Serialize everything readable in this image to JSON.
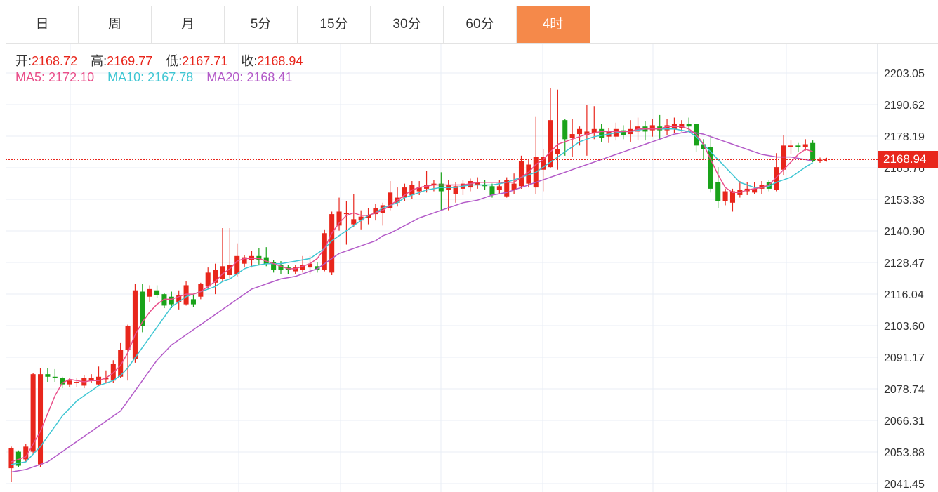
{
  "tabs": [
    {
      "label": "日"
    },
    {
      "label": "周"
    },
    {
      "label": "月"
    },
    {
      "label": "5分"
    },
    {
      "label": "15分"
    },
    {
      "label": "30分"
    },
    {
      "label": "60分"
    },
    {
      "label": "4时",
      "active": true
    }
  ],
  "ohlc": {
    "open_label": "开:",
    "open": "2168.72",
    "high_label": "高:",
    "high": "2169.77",
    "low_label": "低:",
    "low": "2167.71",
    "close_label": "收:",
    "close": "2168.94"
  },
  "ma": {
    "ma5_label": "MA5:",
    "ma5": "2172.10",
    "ma10_label": "MA10:",
    "ma10": "2167.78",
    "ma20_label": "MA20:",
    "ma20": "2168.41"
  },
  "last_price": "2168.94",
  "colors": {
    "up": "#e8261c",
    "down": "#1aa31a",
    "ma5": "#e94f8a",
    "ma10": "#3fc6d3",
    "ma20": "#b35ac8",
    "grid": "#e8eef5",
    "active_tab": "#f5894a"
  },
  "chart_data": {
    "type": "candlestick",
    "y_ticks": [
      "2203.05",
      "2190.62",
      "2178.19",
      "2165.76",
      "2153.33",
      "2140.90",
      "2128.47",
      "2116.04",
      "2103.60",
      "2091.17",
      "2078.74",
      "2066.31",
      "2053.88",
      "2041.45"
    ],
    "ylim": [
      2041.45,
      2203.05
    ],
    "last_close": 2168.94,
    "candles": [
      [
        2047.5,
        2055.5,
        2056.0,
        2042.0
      ],
      [
        2054.0,
        2048.5,
        2054.5,
        2048.0
      ],
      [
        2051.0,
        2056.0,
        2057.0,
        2050.0
      ],
      [
        2054.0,
        2084.5,
        2085.0,
        2053.0
      ],
      [
        2049.0,
        2084.5,
        2087.0,
        2048.0
      ],
      [
        2084.5,
        2083.5,
        2087.0,
        2081.5
      ],
      [
        2083.5,
        2083.0,
        2086.5,
        2081.5
      ],
      [
        2083.0,
        2080.5,
        2083.5,
        2079.0
      ],
      [
        2080.5,
        2082.0,
        2083.0,
        2079.5
      ],
      [
        2081.0,
        2081.5,
        2083.0,
        2079.5
      ],
      [
        2080.0,
        2083.0,
        2084.0,
        2079.0
      ],
      [
        2082.0,
        2083.0,
        2084.5,
        2081.0
      ],
      [
        2080.5,
        2083.5,
        2087.5,
        2080.0
      ],
      [
        2082.5,
        2083.0,
        2086.0,
        2081.0
      ],
      [
        2082.0,
        2088.5,
        2090.0,
        2081.0
      ],
      [
        2083.5,
        2094.0,
        2097.0,
        2083.0
      ],
      [
        2094.0,
        2103.5,
        2104.0,
        2082.0
      ],
      [
        2090.5,
        2117.5,
        2120.0,
        2089.0
      ],
      [
        2117.0,
        2103.5,
        2120.0,
        2101.0
      ],
      [
        2115.0,
        2118.0,
        2119.5,
        2113.0
      ],
      [
        2117.5,
        2115.5,
        2119.5,
        2114.5
      ],
      [
        2116.0,
        2111.5,
        2116.5,
        2110.5
      ],
      [
        2115.0,
        2112.0,
        2117.0,
        2110.5
      ],
      [
        2113.0,
        2115.5,
        2117.5,
        2110.0
      ],
      [
        2112.0,
        2119.5,
        2121.0,
        2111.5
      ],
      [
        2114.0,
        2112.0,
        2116.0,
        2111.0
      ],
      [
        2115.0,
        2120.0,
        2120.5,
        2114.0
      ],
      [
        2119.0,
        2124.5,
        2126.5,
        2118.0
      ],
      [
        2120.5,
        2125.5,
        2128.0,
        2116.0
      ],
      [
        2122.0,
        2127.0,
        2142.0,
        2121.0
      ],
      [
        2123.5,
        2127.5,
        2142.0,
        2122.0
      ],
      [
        2124.0,
        2131.0,
        2136.0,
        2123.0
      ],
      [
        2128.0,
        2130.5,
        2131.5,
        2126.5
      ],
      [
        2129.5,
        2131.0,
        2133.0,
        2126.5
      ],
      [
        2131.0,
        2129.5,
        2134.0,
        2127.5
      ],
      [
        2130.5,
        2128.0,
        2134.5,
        2127.0
      ],
      [
        2128.5,
        2125.5,
        2129.5,
        2124.5
      ],
      [
        2127.5,
        2125.5,
        2129.0,
        2124.0
      ],
      [
        2126.5,
        2125.5,
        2127.5,
        2124.0
      ],
      [
        2125.0,
        2126.5,
        2127.5,
        2124.0
      ],
      [
        2125.5,
        2127.5,
        2131.0,
        2124.5
      ],
      [
        2126.5,
        2128.0,
        2131.0,
        2124.0
      ],
      [
        2127.0,
        2125.5,
        2128.5,
        2124.5
      ],
      [
        2125.5,
        2140.0,
        2141.5,
        2125.0
      ],
      [
        2124.5,
        2147.5,
        2148.5,
        2123.5
      ],
      [
        2143.0,
        2148.5,
        2154.0,
        2141.0
      ],
      [
        2147.5,
        2148.0,
        2152.5,
        2135.5
      ],
      [
        2143.5,
        2145.5,
        2155.5,
        2142.5
      ],
      [
        2145.0,
        2146.5,
        2149.0,
        2141.5
      ],
      [
        2146.0,
        2147.0,
        2150.0,
        2143.5
      ],
      [
        2147.5,
        2150.0,
        2151.5,
        2145.0
      ],
      [
        2148.0,
        2151.0,
        2152.0,
        2143.0
      ],
      [
        2150.0,
        2156.0,
        2160.5,
        2149.0
      ],
      [
        2152.0,
        2154.0,
        2158.0,
        2150.5
      ],
      [
        2154.0,
        2158.0,
        2159.5,
        2152.5
      ],
      [
        2155.0,
        2159.0,
        2160.5,
        2153.5
      ],
      [
        2156.5,
        2158.0,
        2160.5,
        2155.0
      ],
      [
        2157.5,
        2159.0,
        2164.5,
        2156.0
      ],
      [
        2159.0,
        2159.5,
        2161.0,
        2156.5
      ],
      [
        2159.5,
        2156.5,
        2164.0,
        2149.0
      ],
      [
        2157.0,
        2159.0,
        2161.0,
        2149.0
      ],
      [
        2155.5,
        2158.5,
        2160.0,
        2152.0
      ],
      [
        2157.5,
        2159.5,
        2161.0,
        2155.0
      ],
      [
        2158.0,
        2160.5,
        2161.5,
        2156.5
      ],
      [
        2159.0,
        2160.0,
        2162.0,
        2157.5
      ],
      [
        2159.0,
        2158.5,
        2161.0,
        2157.0
      ],
      [
        2158.5,
        2155.0,
        2159.5,
        2154.0
      ],
      [
        2157.0,
        2158.5,
        2161.0,
        2155.5
      ],
      [
        2154.5,
        2161.0,
        2162.0,
        2154.0
      ],
      [
        2157.0,
        2159.5,
        2163.5,
        2155.5
      ],
      [
        2158.5,
        2168.5,
        2170.5,
        2157.5
      ],
      [
        2159.5,
        2167.0,
        2169.0,
        2158.0
      ],
      [
        2158.0,
        2170.0,
        2186.0,
        2155.5
      ],
      [
        2165.0,
        2170.0,
        2173.0,
        2156.5
      ],
      [
        2166.0,
        2184.5,
        2197.0,
        2165.5
      ],
      [
        2171.0,
        2173.0,
        2196.5,
        2165.0
      ],
      [
        2184.5,
        2177.0,
        2185.0,
        2170.5
      ],
      [
        2177.5,
        2179.0,
        2185.0,
        2170.0
      ],
      [
        2179.0,
        2181.0,
        2182.0,
        2174.5
      ],
      [
        2178.5,
        2180.0,
        2190.5,
        2170.5
      ],
      [
        2179.5,
        2181.0,
        2190.0,
        2177.0
      ],
      [
        2181.0,
        2177.5,
        2183.0,
        2176.0
      ],
      [
        2178.0,
        2180.0,
        2181.5,
        2175.5
      ],
      [
        2178.0,
        2181.0,
        2183.5,
        2176.5
      ],
      [
        2180.5,
        2178.5,
        2182.5,
        2177.0
      ],
      [
        2179.0,
        2181.0,
        2184.5,
        2176.0
      ],
      [
        2180.0,
        2182.0,
        2185.5,
        2176.5
      ],
      [
        2182.0,
        2180.0,
        2184.0,
        2176.5
      ],
      [
        2180.5,
        2182.5,
        2185.0,
        2178.0
      ],
      [
        2182.0,
        2180.5,
        2186.5,
        2177.0
      ],
      [
        2180.5,
        2182.5,
        2185.0,
        2178.5
      ],
      [
        2181.0,
        2183.0,
        2185.5,
        2179.5
      ],
      [
        2181.5,
        2183.0,
        2184.5,
        2180.0
      ],
      [
        2183.0,
        2182.0,
        2185.5,
        2180.0
      ],
      [
        2183.0,
        2174.5,
        2183.0,
        2172.0
      ],
      [
        2175.0,
        2173.0,
        2177.0,
        2169.0
      ],
      [
        2174.0,
        2157.5,
        2178.5,
        2156.0
      ],
      [
        2160.0,
        2152.5,
        2166.0,
        2150.0
      ],
      [
        2152.5,
        2156.5,
        2157.5,
        2151.0
      ],
      [
        2152.0,
        2156.5,
        2157.5,
        2148.5
      ],
      [
        2155.0,
        2157.0,
        2160.5,
        2154.0
      ],
      [
        2156.5,
        2157.5,
        2160.0,
        2155.0
      ],
      [
        2156.0,
        2157.5,
        2160.0,
        2155.5
      ],
      [
        2157.5,
        2159.0,
        2160.5,
        2155.5
      ],
      [
        2160.0,
        2157.5,
        2161.0,
        2156.5
      ],
      [
        2157.0,
        2166.0,
        2171.5,
        2156.5
      ],
      [
        2165.0,
        2174.5,
        2178.5,
        2163.0
      ],
      [
        2174.0,
        2174.5,
        2176.5,
        2171.0
      ],
      [
        2174.5,
        2174.0,
        2175.5,
        2172.0
      ],
      [
        2174.0,
        2175.0,
        2177.0,
        2172.5
      ],
      [
        2175.5,
        2168.5,
        2176.5,
        2168.0
      ],
      [
        2168.72,
        2168.94,
        2169.77,
        2167.71
      ]
    ],
    "ma5": [
      2050,
      2051,
      2052,
      2057,
      2062,
      2069,
      2076,
      2081,
      2082.5,
      2082,
      2081.5,
      2082,
      2082,
      2083,
      2085,
      2088,
      2093,
      2100,
      2105,
      2109,
      2112,
      2114,
      2114,
      2115,
      2116,
      2116,
      2117,
      2119,
      2121,
      2124,
      2126,
      2129,
      2130,
      2130,
      2130,
      2129,
      2128,
      2127,
      2126,
      2126,
      2127,
      2128,
      2130,
      2134,
      2140,
      2144,
      2147,
      2148,
      2147,
      2147,
      2148,
      2149,
      2151,
      2153,
      2155,
      2157,
      2158,
      2158.5,
      2159,
      2159,
      2159,
      2159,
      2159,
      2159.5,
      2160,
      2160,
      2160,
      2160,
      2160,
      2160,
      2162,
      2164,
      2167,
      2169,
      2172,
      2175,
      2176,
      2177,
      2178,
      2179,
      2179.5,
      2180,
      2180,
      2180,
      2180,
      2180,
      2181,
      2181,
      2181,
      2181,
      2182,
      2182,
      2182,
      2181,
      2179,
      2175,
      2169,
      2163,
      2158,
      2156,
      2156,
      2157,
      2157.5,
      2158,
      2159,
      2162,
      2165,
      2168,
      2171,
      2173,
      2172.1
    ],
    "ma10": [
      2049,
      2049.5,
      2050,
      2053,
      2056,
      2060,
      2064,
      2068,
      2071,
      2074,
      2076,
      2078,
      2080,
      2081,
      2082,
      2084,
      2087,
      2091,
      2095,
      2099,
      2103,
      2107,
      2111,
      2113,
      2115,
      2116,
      2117,
      2118,
      2119,
      2121,
      2122,
      2124,
      2126,
      2127,
      2127.5,
      2128,
      2128,
      2128,
      2128.5,
      2129,
      2129.5,
      2130,
      2132,
      2134,
      2137,
      2139,
      2141,
      2143,
      2145,
      2147,
      2148,
      2150,
      2151,
      2152,
      2154,
      2155,
      2156,
      2157,
      2157.5,
      2158,
      2158,
      2158,
      2158.5,
      2159,
      2159,
      2159,
      2159,
      2159.5,
      2160,
      2161,
      2162,
      2163,
      2164,
      2166,
      2168,
      2170,
      2172,
      2174,
      2176,
      2177,
      2178,
      2178.5,
      2179,
      2179.5,
      2180,
      2180,
      2180.5,
      2181,
      2181,
      2181,
      2181,
      2181,
      2180.5,
      2180,
      2178,
      2175,
      2172,
      2169,
      2166,
      2163,
      2160,
      2159,
      2158,
      2158,
      2158.5,
      2160,
      2161,
      2162,
      2164,
      2166,
      2167.78
    ],
    "ma20": [
      2046,
      2046.5,
      2047,
      2048,
      2049,
      2050,
      2052,
      2054,
      2056,
      2058,
      2060,
      2062,
      2064,
      2066,
      2068,
      2070,
      2074,
      2078,
      2082,
      2086,
      2090,
      2093,
      2096,
      2098,
      2100,
      2102,
      2104,
      2106,
      2108,
      2110,
      2112,
      2114,
      2116,
      2118,
      2119,
      2120,
      2121,
      2122,
      2122.5,
      2123,
      2124,
      2125,
      2126,
      2128,
      2130,
      2132,
      2133,
      2134,
      2135,
      2136,
      2137,
      2139,
      2140,
      2141.5,
      2143,
      2144.5,
      2146,
      2147,
      2148,
      2149,
      2150,
      2151,
      2152,
      2152.5,
      2153,
      2154,
      2155,
      2155.5,
      2156,
      2157,
      2158,
      2159,
      2160,
      2161,
      2162,
      2163,
      2164,
      2165,
      2166,
      2167,
      2168,
      2169,
      2170,
      2171,
      2172,
      2173,
      2174,
      2175,
      2176,
      2177,
      2178,
      2179,
      2179.5,
      2180,
      2179.5,
      2179,
      2178,
      2177,
      2176,
      2175,
      2174,
      2173,
      2172,
      2171,
      2170.5,
      2170,
      2170,
      2170,
      2169.5,
      2169,
      2168.41
    ]
  }
}
